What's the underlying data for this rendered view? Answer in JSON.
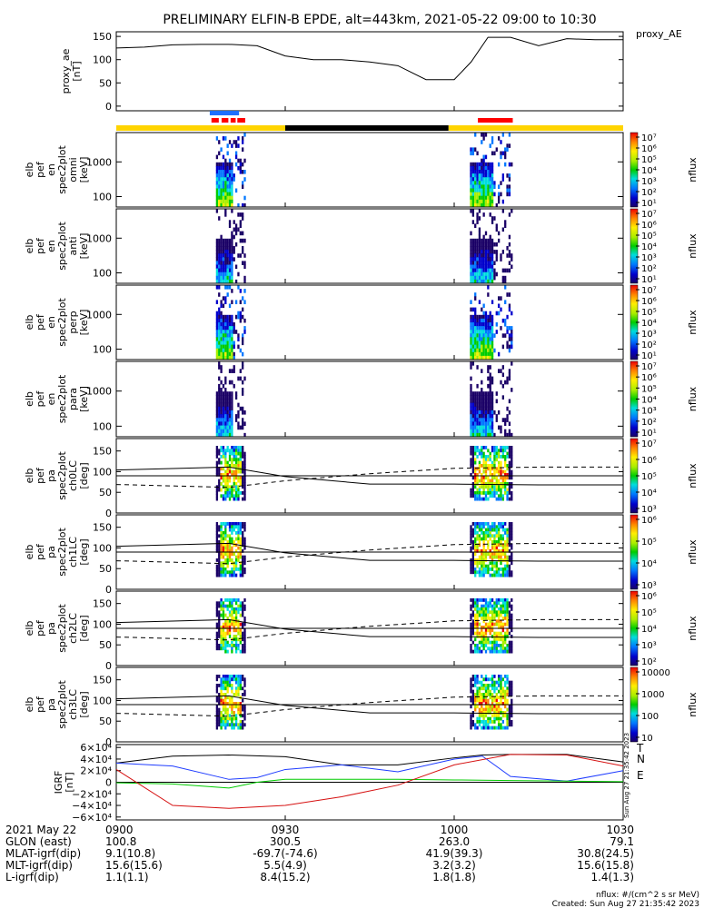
{
  "title": "PRELIMINARY ELFIN-B EPDE, alt=443km, 2021-05-22 09:00 to 10:30",
  "colors": {
    "bar_yellow": "#ffd400",
    "bar_black": "#000000",
    "bar_blue": "#1e6fff",
    "bar_red": "#ff0000",
    "grf_black": "#000000",
    "grf_blue": "#1f3cff",
    "grf_red": "#d61111",
    "grf_green": "#00cc00"
  },
  "chart_data": [
    {
      "type": "line",
      "name": "proxy_ae",
      "ylabel": "proxy_ae [nT]",
      "legend": "proxy_AE",
      "ylim": [
        -10,
        160
      ],
      "yticks": [
        "150",
        "100",
        "50",
        "0"
      ],
      "ytick_values": [
        150,
        100,
        50,
        0
      ],
      "x_minutes": [
        0,
        5,
        10,
        15,
        20,
        25,
        30,
        35,
        40,
        45,
        50,
        55,
        60,
        63,
        66,
        70,
        75,
        80,
        85,
        90
      ],
      "values": [
        125,
        127,
        132,
        133,
        133,
        130,
        108,
        100,
        100,
        95,
        87,
        57,
        57,
        95,
        148,
        148,
        130,
        145,
        143,
        143
      ]
    },
    {
      "type": "heatmap",
      "name": "elb pef en spec2plot omni",
      "ylabel": "elb pef en spec2plot omni [keV]",
      "yticks": [
        "1000",
        "100"
      ],
      "colorbar_label": "nflux",
      "colorbar_ticks": [
        "10⁷",
        "10⁶",
        "10⁵",
        "10⁴",
        "10³",
        "10²",
        "10¹"
      ],
      "active_intervals_minutes": [
        [
          18.5,
          24
        ],
        [
          63,
          70
        ]
      ]
    },
    {
      "type": "heatmap",
      "name": "elb pef en spec2plot anti",
      "ylabel": "elb pef en spec2plot anti [keV]",
      "yticks": [
        "1000",
        "100"
      ],
      "colorbar_label": "nflux",
      "colorbar_ticks": [
        "10⁷",
        "10⁶",
        "10⁵",
        "10⁴",
        "10³",
        "10²",
        "10¹"
      ],
      "active_intervals_minutes": [
        [
          18.5,
          24
        ],
        [
          63,
          70
        ]
      ]
    },
    {
      "type": "heatmap",
      "name": "elb pef en spec2plot perp",
      "ylabel": "elb pef en spec2plot perp [keV]",
      "yticks": [
        "1000",
        "100"
      ],
      "colorbar_label": "nflux",
      "colorbar_ticks": [
        "10⁷",
        "10⁶",
        "10⁵",
        "10⁴",
        "10³",
        "10²",
        "10¹"
      ],
      "active_intervals_minutes": [
        [
          18.5,
          24
        ],
        [
          63,
          70
        ]
      ]
    },
    {
      "type": "heatmap",
      "name": "elb pef en spec2plot para",
      "ylabel": "elb pef en spec2plot para [keV]",
      "yticks": [
        "1000",
        "100"
      ],
      "colorbar_label": "nflux",
      "colorbar_ticks": [
        "10⁷",
        "10⁶",
        "10⁵",
        "10⁴",
        "10³",
        "10²",
        "10¹"
      ],
      "active_intervals_minutes": [
        [
          18.5,
          24
        ],
        [
          63,
          70
        ]
      ]
    },
    {
      "type": "heatmap",
      "name": "elb pef pa spec2plot ch0LC",
      "ylabel": "elb pef pa spec2plot ch0LC [deg]",
      "ylim": [
        0,
        180
      ],
      "yticks": [
        "150",
        "100",
        "50",
        "0"
      ],
      "colorbar_label": "nflux",
      "colorbar_ticks": [
        "10⁷",
        "10⁶",
        "10⁵",
        "10⁴",
        "10³"
      ],
      "active_intervals_minutes": [
        [
          18.5,
          24
        ],
        [
          63,
          70
        ]
      ]
    },
    {
      "type": "heatmap",
      "name": "elb pef pa spec2plot ch1LC",
      "ylabel": "elb pef pa spec2plot ch1LC [deg]",
      "ylim": [
        0,
        180
      ],
      "yticks": [
        "150",
        "100",
        "50",
        "0"
      ],
      "colorbar_label": "nflux",
      "colorbar_ticks": [
        "10⁶",
        "10⁵",
        "10⁴",
        "10³"
      ],
      "active_intervals_minutes": [
        [
          18.5,
          24
        ],
        [
          63,
          70
        ]
      ]
    },
    {
      "type": "heatmap",
      "name": "elb pef pa spec2plot ch2LC",
      "ylabel": "elb pef pa spec2plot ch2LC [deg]",
      "ylim": [
        0,
        180
      ],
      "yticks": [
        "150",
        "100",
        "50",
        "0"
      ],
      "colorbar_label": "nflux",
      "colorbar_ticks": [
        "10⁶",
        "10⁵",
        "10⁴",
        "10³",
        "10²"
      ],
      "active_intervals_minutes": [
        [
          18.5,
          24
        ],
        [
          63,
          70
        ]
      ]
    },
    {
      "type": "heatmap",
      "name": "elb pef pa spec2plot ch3LC",
      "ylabel": "elb pef pa spec2plot ch3LC [deg]",
      "ylim": [
        0,
        180
      ],
      "yticks": [
        "150",
        "100",
        "50",
        "0"
      ],
      "colorbar_label": "nflux",
      "colorbar_ticks": [
        "10000",
        "1000",
        "100",
        "10"
      ],
      "active_intervals_minutes": [
        [
          18.5,
          24
        ],
        [
          63,
          70
        ]
      ]
    },
    {
      "type": "line",
      "name": "IGRF",
      "ylabel": "IGRF [nT]",
      "ylim": [
        -65000,
        65000
      ],
      "yticks": [
        "6×10⁴",
        "4×10⁴",
        "2×10⁴",
        "0",
        "−2×10⁴",
        "−4×10⁴",
        "−6×10⁴"
      ],
      "ytick_values": [
        60000,
        40000,
        20000,
        0,
        -20000,
        -40000,
        -60000
      ],
      "series": [
        {
          "name": "T",
          "x_minutes": [
            0,
            10,
            20,
            30,
            40,
            50,
            60,
            65,
            70,
            80,
            90
          ],
          "values": [
            33000,
            45000,
            47000,
            44000,
            30000,
            30000,
            42000,
            47000,
            48000,
            48000,
            35000
          ]
        },
        {
          "name": "N",
          "x_minutes": [
            0,
            10,
            20,
            25,
            30,
            40,
            50,
            60,
            65,
            70,
            80,
            90
          ],
          "values": [
            33000,
            28000,
            5000,
            8000,
            22000,
            30000,
            18000,
            40000,
            45000,
            10000,
            2000,
            20000
          ]
        },
        {
          "name": "E",
          "x_minutes": [
            0,
            10,
            20,
            25,
            30,
            50,
            60,
            70,
            80,
            90
          ],
          "values": [
            -1000,
            -3000,
            -10000,
            0,
            5000,
            5000,
            4000,
            3000,
            2000,
            1000
          ]
        },
        {
          "name": "",
          "x_minutes": [
            0,
            10,
            20,
            30,
            40,
            50,
            60,
            70,
            80,
            90
          ],
          "values": [
            22000,
            -40000,
            -45000,
            -40000,
            -25000,
            -5000,
            30000,
            48000,
            47000,
            28000
          ]
        }
      ],
      "sidebar_text": "Sun Aug 27 21:35:42 2023"
    }
  ],
  "xaxis": {
    "x_minutes": [
      0,
      30,
      60,
      90
    ],
    "rows": [
      {
        "label": "2021 May 22",
        "values": [
          "0900",
          "0930",
          "1000",
          "1030"
        ]
      },
      {
        "label": "GLON (east)",
        "values": [
          "100.8",
          "300.5",
          "263.0",
          "79.1"
        ]
      },
      {
        "label": "MLAT-igrf(dip)",
        "values": [
          "9.1(10.8)",
          "-69.7(-74.6)",
          "41.9(39.3)",
          "30.8(24.5)"
        ]
      },
      {
        "label": "MLT-igrf(dip)",
        "values": [
          "15.6(15.6)",
          "5.5(4.9)",
          "3.2(3.2)",
          "15.6(15.8)"
        ]
      },
      {
        "label": "L-igrf(dip)",
        "values": [
          "1.1(1.1)",
          "8.4(15.2)",
          "1.8(1.8)",
          "1.4(1.3)"
        ]
      }
    ]
  },
  "footer": {
    "units": "nflux: #/(cm^2 s sr MeV)",
    "created": "Created: Sun Aug 27 21:35:42 2023"
  }
}
